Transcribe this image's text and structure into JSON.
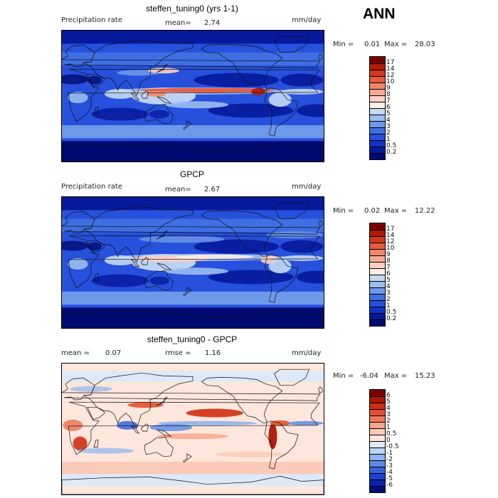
{
  "season": "ANN",
  "panels": [
    {
      "title": "steffen_tuning0 (yrs 1-1)",
      "left_label": "Precipitation rate",
      "stat1_label": "mean=",
      "stat1_value": "2.74",
      "stat2_label": "",
      "stat2_value": "",
      "units": "mm/day",
      "min_label": "Min =",
      "min_value": "0.01",
      "max_label": "Max =",
      "max_value": "28.03",
      "kind": "precip",
      "levels": [
        "17",
        "14",
        "12",
        "10",
        "9",
        "8",
        "7",
        "6",
        "5",
        "4",
        "3",
        "2",
        "1",
        "0.5",
        "0.2"
      ],
      "colors": [
        "#7a0000",
        "#b21a08",
        "#d4371c",
        "#e85a3a",
        "#f4866a",
        "#f8ab94",
        "#fbd0c0",
        "#fbeee6",
        "#c5d9f3",
        "#9dbdf0",
        "#6e98ea",
        "#3f6fe3",
        "#2750dc",
        "#1432c8",
        "#07199c",
        "#000a72"
      ]
    },
    {
      "title": "GPCP",
      "left_label": "Precipitation rate",
      "stat1_label": "mean=",
      "stat1_value": "2.67",
      "stat2_label": "",
      "stat2_value": "",
      "units": "mm/day",
      "min_label": "Min =",
      "min_value": "0.02",
      "max_label": "Max =",
      "max_value": "12.22",
      "kind": "precip",
      "levels": [
        "17",
        "14",
        "12",
        "10",
        "9",
        "8",
        "7",
        "6",
        "5",
        "4",
        "3",
        "2",
        "1",
        "0.5",
        "0.2"
      ],
      "colors": [
        "#7a0000",
        "#b21a08",
        "#d4371c",
        "#e85a3a",
        "#f4866a",
        "#f8ab94",
        "#fbd0c0",
        "#fbeee6",
        "#c5d9f3",
        "#9dbdf0",
        "#6e98ea",
        "#3f6fe3",
        "#2750dc",
        "#1432c8",
        "#07199c",
        "#000a72"
      ]
    },
    {
      "title": "steffen_tuning0 - GPCP",
      "left_label": "",
      "stat1_label": "mean =",
      "stat1_value": "0.07",
      "stat2_label": "rmse =",
      "stat2_value": "1.16",
      "units": "mm/day",
      "min_label": "Min =",
      "min_value": "-6.04",
      "max_label": "Max =",
      "max_value": "15.23",
      "kind": "diff",
      "levels": [
        "6",
        "5",
        "4",
        "3",
        "2",
        "1",
        "0.5",
        "0",
        "-0.5",
        "-1",
        "-2",
        "-3",
        "-4",
        "-5",
        "-6"
      ],
      "colors": [
        "#7a0000",
        "#b01505",
        "#d12d12",
        "#e4502f",
        "#f07a5b",
        "#f7a68b",
        "#fccab8",
        "#fde6dc",
        "#dde9f8",
        "#bcd3f4",
        "#8fb3ee",
        "#5f8be6",
        "#3563de",
        "#1d40d0",
        "#0c24aa",
        "#020f7a"
      ]
    }
  ]
}
